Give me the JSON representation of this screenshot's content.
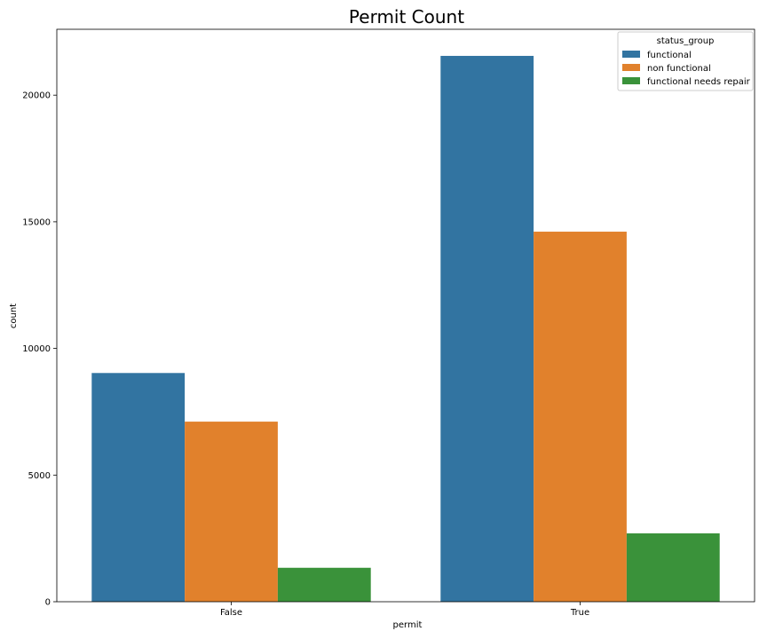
{
  "chart_data": {
    "type": "bar",
    "title": "Permit Count",
    "xlabel": "permit",
    "ylabel": "count",
    "categories": [
      "False",
      "True"
    ],
    "ylim": [
      0,
      22600
    ],
    "yticks": [
      0,
      5000,
      10000,
      15000,
      20000
    ],
    "grid": false,
    "legend": {
      "title": "status_group",
      "placement": "top-right"
    },
    "series": [
      {
        "name": "functional",
        "color": "#3274a1",
        "values": [
          9030,
          21550
        ]
      },
      {
        "name": "non functional",
        "color": "#e1812c",
        "values": [
          7110,
          14610
        ]
      },
      {
        "name": "functional needs repair",
        "color": "#3a923a",
        "values": [
          1340,
          2700
        ]
      }
    ]
  }
}
